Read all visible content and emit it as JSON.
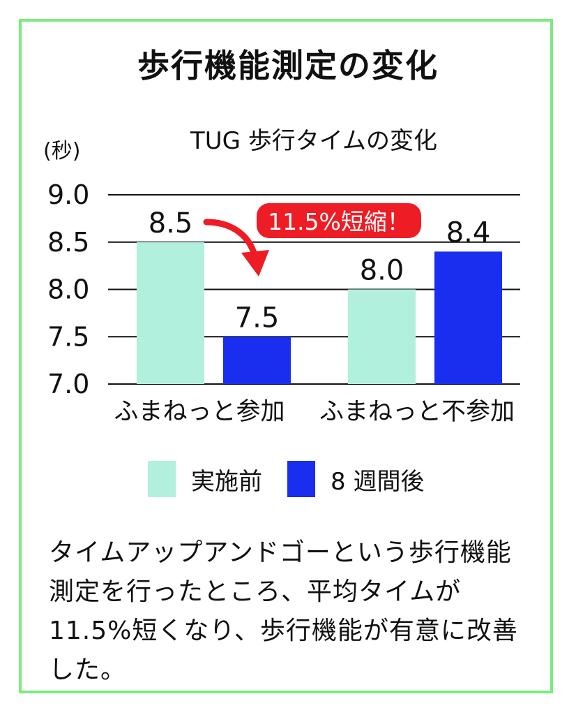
{
  "main_title": "歩行機能測定の変化",
  "chart_data": {
    "type": "bar",
    "title": "TUG 歩行タイムの変化",
    "ylabel": "(秒)",
    "ylim": [
      7.0,
      9.0
    ],
    "yticks": [
      "9.0",
      "8.5",
      "8.0",
      "7.5",
      "7.0"
    ],
    "categories": [
      "ふまねっと参加",
      "ふまねっと不参加"
    ],
    "series": [
      {
        "name": "実施前",
        "color": "#B1F0DC",
        "values": [
          8.5,
          8.0
        ],
        "labels": [
          "8.5",
          "8.0"
        ]
      },
      {
        "name": "8 週間後",
        "color": "#1A2EF0",
        "values": [
          7.5,
          8.4
        ],
        "labels": [
          "7.5",
          "8.4"
        ]
      }
    ],
    "annotation": {
      "text": "11.5%短縮！",
      "color": "#EE1C25"
    },
    "grid": true,
    "legend": "bottom"
  },
  "caption": "タイムアップアンドゴーという歩行機能測定を行ったところ、平均タイムが11.5%短くなり、歩行機能が有意に改善した。"
}
